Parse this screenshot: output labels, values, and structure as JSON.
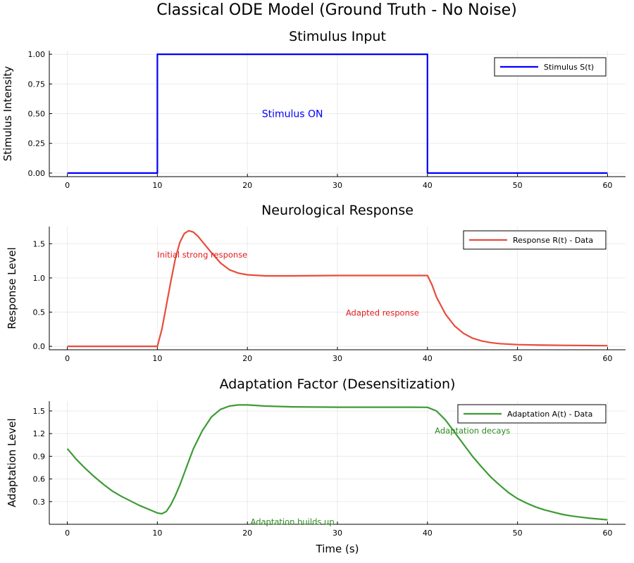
{
  "figure": {
    "title": "Classical ODE Model (Ground Truth - No Noise)"
  },
  "chart_data": [
    {
      "type": "line",
      "title": "Stimulus Input",
      "xlabel": "",
      "ylabel": "Stimulus Intensity",
      "xlim": [
        -2,
        62
      ],
      "ylim": [
        -0.03,
        1.03
      ],
      "xticks": [
        0,
        10,
        20,
        30,
        40,
        50,
        60
      ],
      "yticks": [
        0.0,
        0.25,
        0.5,
        0.75,
        1.0
      ],
      "ytick_labels": [
        "0.00",
        "0.25",
        "0.50",
        "0.75",
        "1.00"
      ],
      "grid": true,
      "legend": "top-right",
      "series": [
        {
          "name": "Stimulus S(t)",
          "color": "#0000ff",
          "x": [
            0,
            10,
            10,
            40,
            40,
            60
          ],
          "y": [
            0,
            0,
            1,
            1,
            0,
            0
          ]
        }
      ],
      "annotations": [
        {
          "text": "Stimulus ON",
          "x": 25,
          "y": 0.5,
          "color": "#0000ff"
        }
      ]
    },
    {
      "type": "line",
      "title": "Neurological Response",
      "xlabel": "",
      "ylabel": "Response Level",
      "xlim": [
        -2,
        62
      ],
      "ylim": [
        -0.05,
        1.75
      ],
      "xticks": [
        0,
        10,
        20,
        30,
        40,
        50,
        60
      ],
      "yticks": [
        0.0,
        0.5,
        1.0,
        1.5
      ],
      "ytick_labels": [
        "0.0",
        "0.5",
        "1.0",
        "1.5"
      ],
      "grid": true,
      "legend": "top-right",
      "series": [
        {
          "name": "Response R(t) - Data",
          "color": "#e74c3c",
          "x": [
            0,
            10,
            10.5,
            11,
            11.5,
            12,
            12.5,
            13,
            13.5,
            14,
            14.5,
            15,
            16,
            17,
            18,
            19,
            20,
            22,
            25,
            30,
            35,
            39.5,
            40,
            40.5,
            41,
            42,
            43,
            44,
            45,
            46,
            47,
            48,
            50,
            52,
            55,
            60
          ],
          "y": [
            0,
            0,
            0.25,
            0.6,
            0.95,
            1.28,
            1.52,
            1.65,
            1.69,
            1.67,
            1.61,
            1.53,
            1.37,
            1.22,
            1.12,
            1.07,
            1.045,
            1.03,
            1.03,
            1.035,
            1.035,
            1.035,
            1.035,
            0.9,
            0.72,
            0.47,
            0.3,
            0.19,
            0.12,
            0.08,
            0.055,
            0.04,
            0.025,
            0.02,
            0.015,
            0.01
          ]
        }
      ],
      "annotations": [
        {
          "text": "Initial strong response",
          "x": 15,
          "y": 1.35,
          "color": "#e31a1c"
        },
        {
          "text": "Adapted response",
          "x": 35,
          "y": 0.5,
          "color": "#e31a1c"
        }
      ]
    },
    {
      "type": "line",
      "title": "Adaptation Factor (Desensitization)",
      "xlabel": "Time (s)",
      "ylabel": "Adaptation Level",
      "xlim": [
        -2,
        62
      ],
      "ylim": [
        0.0,
        1.63
      ],
      "xticks": [
        0,
        10,
        20,
        30,
        40,
        50,
        60
      ],
      "yticks": [
        0.3,
        0.6,
        0.9,
        1.2,
        1.5
      ],
      "ytick_labels": [
        "0.3",
        "0.6",
        "0.9",
        "1.2",
        "1.5"
      ],
      "grid": true,
      "legend": "top-right",
      "series": [
        {
          "name": "Adaptation A(t) - Data",
          "color": "#3d9b35",
          "x": [
            0,
            1,
            2,
            3,
            4,
            5,
            6,
            7,
            8,
            9,
            10,
            10.5,
            11,
            11.5,
            12,
            12.5,
            13,
            13.5,
            14,
            15,
            16,
            17,
            18,
            19,
            20,
            22,
            25,
            30,
            35,
            38,
            40,
            41,
            42,
            43,
            44,
            45,
            46,
            47,
            48,
            49,
            50,
            51,
            52,
            53,
            54,
            55,
            56,
            57,
            58,
            59,
            60
          ],
          "y": [
            1.0,
            0.86,
            0.74,
            0.63,
            0.53,
            0.44,
            0.37,
            0.31,
            0.25,
            0.2,
            0.15,
            0.14,
            0.17,
            0.26,
            0.38,
            0.52,
            0.68,
            0.84,
            1.0,
            1.24,
            1.42,
            1.52,
            1.565,
            1.58,
            1.58,
            1.565,
            1.555,
            1.55,
            1.55,
            1.55,
            1.548,
            1.5,
            1.38,
            1.22,
            1.06,
            0.9,
            0.76,
            0.63,
            0.52,
            0.42,
            0.34,
            0.28,
            0.23,
            0.19,
            0.16,
            0.13,
            0.11,
            0.095,
            0.08,
            0.07,
            0.06
          ]
        }
      ],
      "annotations": [
        {
          "text": "Adaptation decays",
          "x": 45,
          "y": 1.25,
          "color": "#2e8b22"
        },
        {
          "text": "Adaptation builds up",
          "x": 25,
          "y": 0.04,
          "color": "#2e8b22"
        }
      ]
    }
  ]
}
